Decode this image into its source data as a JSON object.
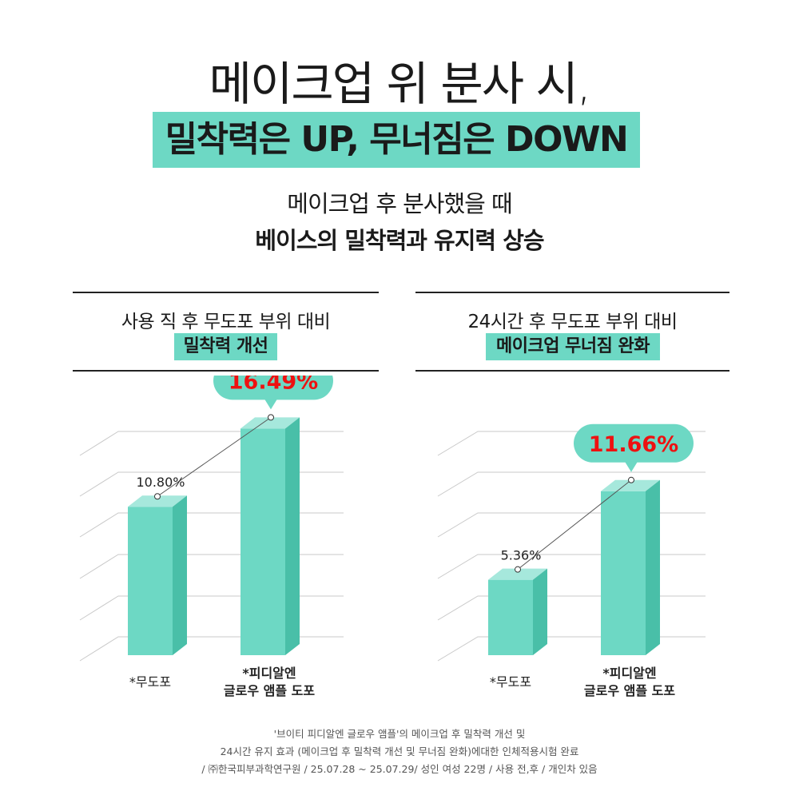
{
  "header": {
    "line1": "메이크업 위 분사 시,",
    "line2": "밀착력은 UP, 무너짐은 DOWN",
    "sub1": "메이크업 후 분사했을 때",
    "sub2": "베이스의 밀착력과 유지력 상승"
  },
  "colors": {
    "accent": "#6dd8c4",
    "bar_front": "#6dd8c4",
    "bar_top": "#a6e8dc",
    "bar_side": "#49bfa8",
    "highlight_text": "#ee1111"
  },
  "chart_data": [
    {
      "type": "bar",
      "caption_line1": "사용 직 후 무도포 부위 대비",
      "caption_line2": "밀착력 개선",
      "categories": [
        "*무도포",
        "*피디알엔\n글로우 앰플 도포"
      ],
      "values": [
        10.8,
        16.49
      ],
      "value_labels": [
        "10.80%",
        "16.49%"
      ],
      "highlight_index": 1,
      "grid": true
    },
    {
      "type": "bar",
      "caption_line1": "24시간 후 무도포 부위 대비",
      "caption_line2": "메이크업 무너짐 완화",
      "categories": [
        "*무도포",
        "*피디알엔\n글로우 앰플 도포"
      ],
      "values": [
        5.36,
        11.66
      ],
      "value_labels": [
        "5.36%",
        "11.66%"
      ],
      "highlight_index": 1,
      "grid": true
    }
  ],
  "footnote": {
    "line1": "'브이티 피디알엔 글로우 앰플'의 메이크업 후 밀착력 개선 및",
    "line2": "24시간 유지 효과 (메이크업 후 밀착력 개선 및 무너짐 완화)에대한 인체적용시험 완료",
    "line3": "/ ㈜한국피부과학연구원 / 25.07.28 ~ 25.07.29/ 성인 여성 22명 / 사용 전,후 / 개인차 있음"
  }
}
